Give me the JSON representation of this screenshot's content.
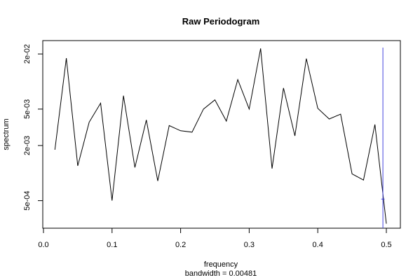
{
  "chart_data": {
    "type": "line",
    "title": "Raw Periodogram",
    "xlabel": "frequency",
    "ylabel": "spectrum",
    "subtitle": "bandwidth = 0.00481",
    "log_y": true,
    "xlim": [
      0.0,
      0.5
    ],
    "ylim": [
      0.00025,
      0.028
    ],
    "x_ticks": [
      {
        "value": 0.0,
        "label": "0.0"
      },
      {
        "value": 0.1,
        "label": "0.1"
      },
      {
        "value": 0.2,
        "label": "0.2"
      },
      {
        "value": 0.3,
        "label": "0.3"
      },
      {
        "value": 0.4,
        "label": "0.4"
      },
      {
        "value": 0.5,
        "label": "0.5"
      }
    ],
    "y_ticks": [
      {
        "value": 0.0005,
        "label": "5e-04"
      },
      {
        "value": 0.002,
        "label": "2e-03"
      },
      {
        "value": 0.005,
        "label": "5e-03"
      },
      {
        "value": 0.02,
        "label": "2e-02"
      }
    ],
    "series": [
      {
        "color": "#000000",
        "x": [
          0.0167,
          0.0333,
          0.05,
          0.0667,
          0.0833,
          0.1,
          0.1167,
          0.1333,
          0.15,
          0.1667,
          0.1833,
          0.2,
          0.2167,
          0.2333,
          0.25,
          0.2667,
          0.2833,
          0.3,
          0.3167,
          0.3333,
          0.35,
          0.3667,
          0.3833,
          0.4,
          0.4167,
          0.4333,
          0.45,
          0.4667,
          0.4833,
          0.5
        ],
        "values": [
          0.0018,
          0.018,
          0.0012,
          0.0036,
          0.0058,
          0.0005,
          0.007,
          0.00115,
          0.0038,
          0.00082,
          0.0033,
          0.0029,
          0.0028,
          0.005,
          0.0063,
          0.0037,
          0.0105,
          0.005,
          0.023,
          0.00112,
          0.0085,
          0.00255,
          0.0178,
          0.0051,
          0.0039,
          0.0044,
          0.00098,
          0.00084,
          0.0034,
          0.00028
        ]
      }
    ],
    "bandwidth_marker": {
      "color": "#4444dd",
      "x": 0.495,
      "y_low": 0.00025,
      "y_high": 0.0235,
      "center_y": 0.00052,
      "half_width": 0.0024
    }
  }
}
